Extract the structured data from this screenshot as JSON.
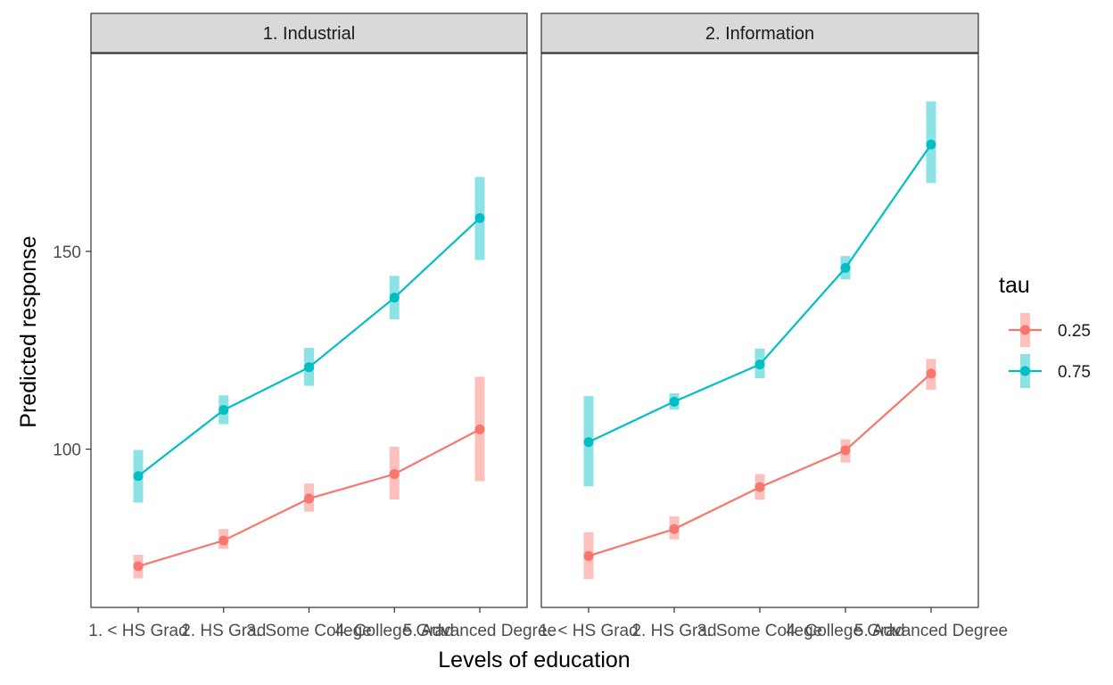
{
  "chart_data": {
    "type": "line",
    "xlabel": "Levels of education",
    "ylabel": "Predicted response",
    "ylim": [
      60,
      200
    ],
    "yticks": [
      100,
      150
    ],
    "categories": [
      "1. < HS Grad",
      "2. HS Grad",
      "3. Some College",
      "4. College Grad",
      "5. Advanced Degree"
    ],
    "legend": {
      "title": "tau",
      "position": "right"
    },
    "colors": {
      "0.25": "#F8766D",
      "0.75": "#00BFC4",
      "strip_bg": "#D9D9D9",
      "panel_border": "#333333"
    },
    "panels": [
      {
        "strip": "1. Industrial",
        "series": [
          {
            "name": "0.25",
            "values": [
              70.4,
              76.9,
              87.5,
              93.7,
              105.0
            ],
            "lower": [
              67.3,
              74.8,
              84.2,
              87.3,
              91.9
            ],
            "upper": [
              73.3,
              79.8,
              91.3,
              100.6,
              118.3
            ]
          },
          {
            "name": "0.75",
            "values": [
              93.2,
              109.9,
              120.7,
              138.3,
              158.4
            ],
            "lower": [
              86.5,
              106.3,
              116.0,
              132.8,
              147.8
            ],
            "upper": [
              99.8,
              113.6,
              125.6,
              143.8,
              168.8
            ]
          }
        ]
      },
      {
        "strip": "2. Information",
        "series": [
          {
            "name": "0.25",
            "values": [
              73.0,
              79.8,
              90.4,
              99.7,
              119.1
            ],
            "lower": [
              67.2,
              77.2,
              87.2,
              96.6,
              115.0
            ],
            "upper": [
              79.0,
              83.0,
              93.7,
              102.5,
              122.8
            ]
          },
          {
            "name": "0.75",
            "values": [
              101.8,
              112.0,
              121.4,
              145.8,
              177.0
            ],
            "lower": [
              90.6,
              110.0,
              117.9,
              142.9,
              167.3
            ],
            "upper": [
              113.4,
              114.1,
              125.4,
              148.8,
              187.9
            ]
          }
        ]
      }
    ]
  }
}
